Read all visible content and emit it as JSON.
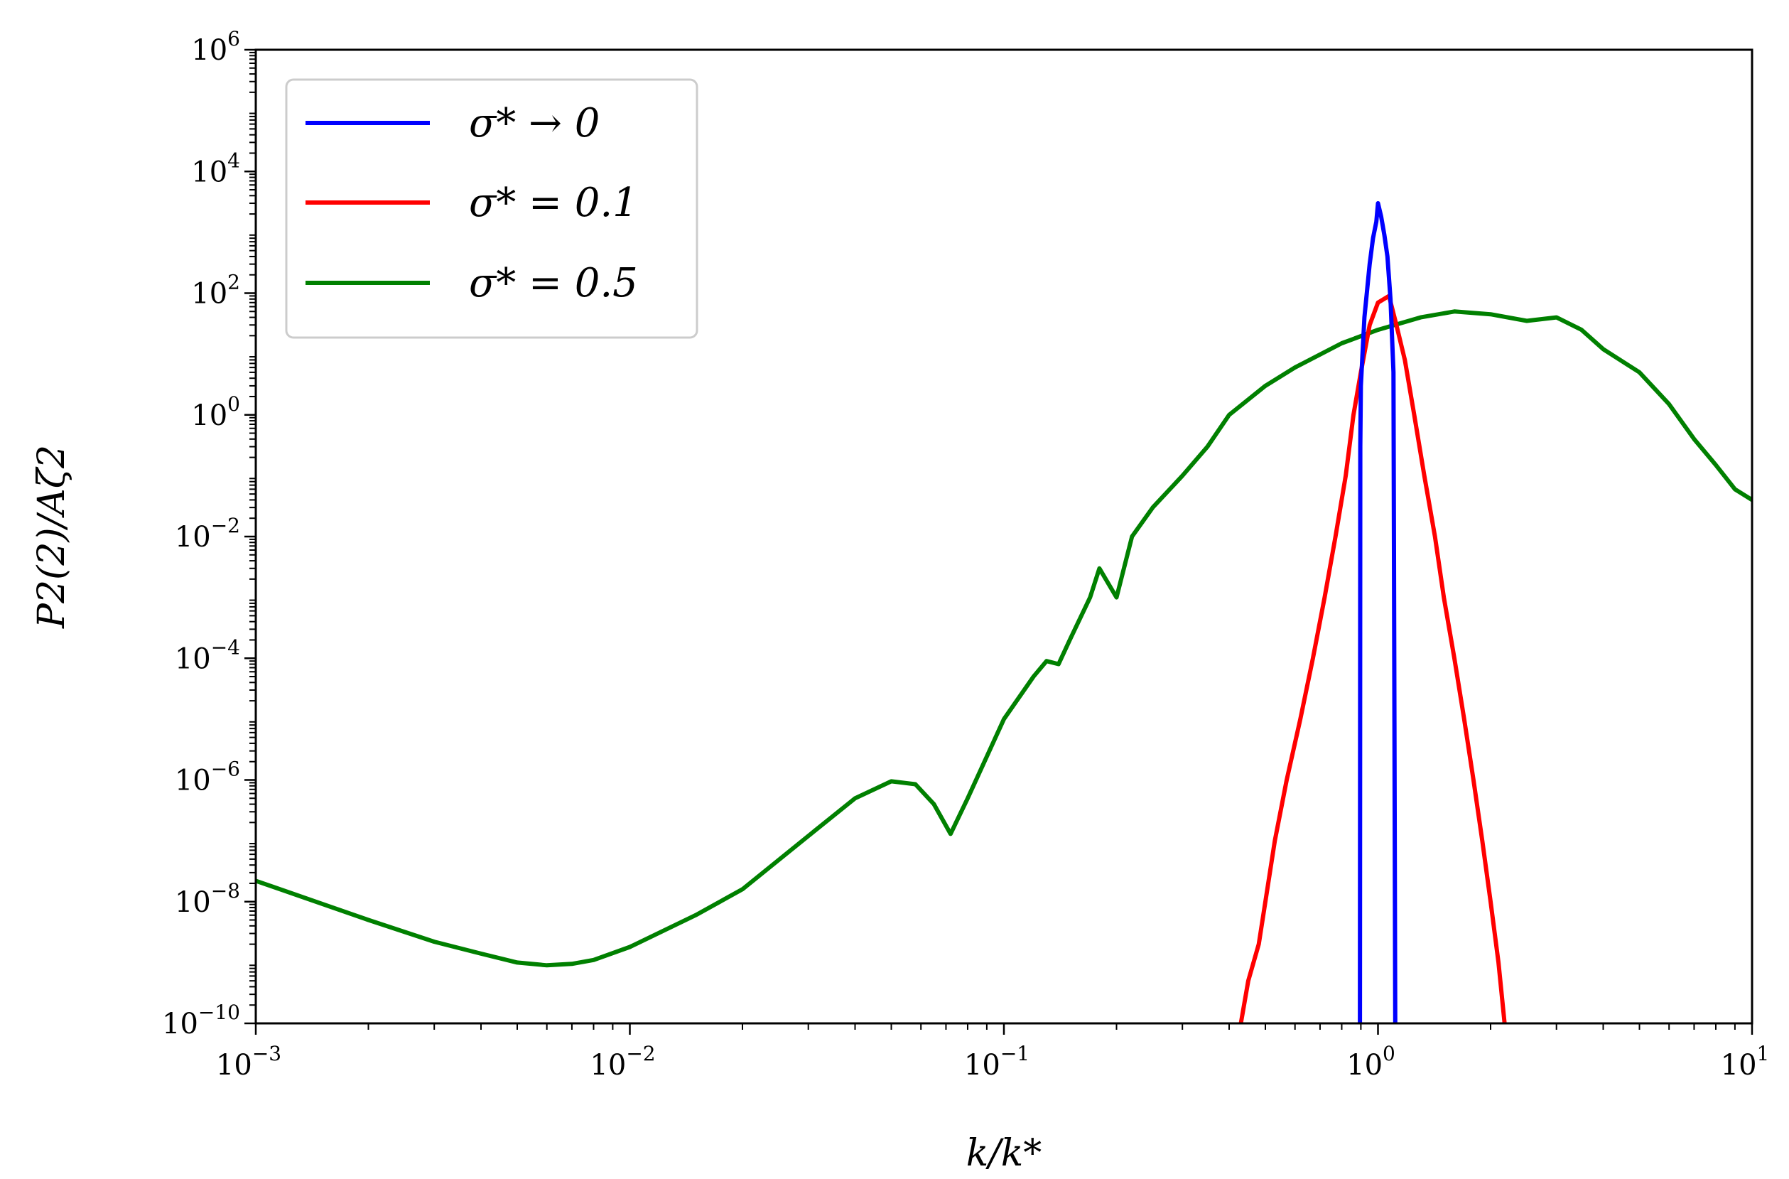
{
  "chart_data": {
    "type": "line",
    "xlabel": "k/k*",
    "ylabel": "P2(2)/Aζ2",
    "xscale": "log",
    "yscale": "log",
    "xlim": [
      0.001,
      10
    ],
    "ylim": [
      1e-10,
      1000000.0
    ],
    "grid": false,
    "legend_position": "top-left",
    "x_ticks": [
      {
        "value": 0.001,
        "base": "10",
        "exp": "−3"
      },
      {
        "value": 0.01,
        "base": "10",
        "exp": "−2"
      },
      {
        "value": 0.1,
        "base": "10",
        "exp": "−1"
      },
      {
        "value": 1,
        "base": "10",
        "exp": "0"
      },
      {
        "value": 10,
        "base": "10",
        "exp": "1"
      }
    ],
    "y_ticks": [
      {
        "value": 1e-10,
        "base": "10",
        "exp": "−10"
      },
      {
        "value": 1e-08,
        "base": "10",
        "exp": "−8"
      },
      {
        "value": 1e-06,
        "base": "10",
        "exp": "−6"
      },
      {
        "value": 0.0001,
        "base": "10",
        "exp": "−4"
      },
      {
        "value": 0.01,
        "base": "10",
        "exp": "−2"
      },
      {
        "value": 1,
        "base": "10",
        "exp": "0"
      },
      {
        "value": 100.0,
        "base": "10",
        "exp": "2"
      },
      {
        "value": 10000.0,
        "base": "10",
        "exp": "4"
      },
      {
        "value": 1000000.0,
        "base": "10",
        "exp": "6"
      }
    ],
    "series": [
      {
        "name": "σ* → 0",
        "color": "#0000ff",
        "points": [
          [
            0.895,
            1e-10
          ],
          [
            0.897,
            0.3
          ],
          [
            0.9,
            3
          ],
          [
            0.92,
            40
          ],
          [
            0.95,
            300
          ],
          [
            0.97,
            800
          ],
          [
            0.99,
            1500
          ],
          [
            1.0,
            3000
          ],
          [
            1.02,
            1800
          ],
          [
            1.04,
            900
          ],
          [
            1.06,
            400
          ],
          [
            1.08,
            80
          ],
          [
            1.1,
            5
          ],
          [
            1.112,
            1e-10
          ]
        ]
      },
      {
        "name": "σ* = 0.1",
        "color": "#ff0000",
        "points": [
          [
            0.43,
            1e-10
          ],
          [
            0.45,
            5e-10
          ],
          [
            0.48,
            2e-09
          ],
          [
            0.5,
            1e-08
          ],
          [
            0.53,
            1e-07
          ],
          [
            0.57,
            1e-06
          ],
          [
            0.62,
            1e-05
          ],
          [
            0.67,
            0.0001
          ],
          [
            0.72,
            0.001
          ],
          [
            0.77,
            0.01
          ],
          [
            0.82,
            0.1
          ],
          [
            0.86,
            1
          ],
          [
            0.9,
            5
          ],
          [
            0.95,
            30
          ],
          [
            1.0,
            70
          ],
          [
            1.07,
            90
          ],
          [
            1.12,
            30
          ],
          [
            1.18,
            8
          ],
          [
            1.25,
            1
          ],
          [
            1.33,
            0.1
          ],
          [
            1.42,
            0.01
          ],
          [
            1.5,
            0.001
          ],
          [
            1.6,
            0.0001
          ],
          [
            1.7,
            1e-05
          ],
          [
            1.8,
            1e-06
          ],
          [
            1.9,
            1e-07
          ],
          [
            2.0,
            1e-08
          ],
          [
            2.1,
            1e-09
          ],
          [
            2.18,
            1e-10
          ]
        ]
      },
      {
        "name": "σ* = 0.5",
        "color": "#008000",
        "points": [
          [
            0.001,
            2.2e-08
          ],
          [
            0.002,
            5e-09
          ],
          [
            0.003,
            2.2e-09
          ],
          [
            0.004,
            1.4e-09
          ],
          [
            0.005,
            1e-09
          ],
          [
            0.006,
            9e-10
          ],
          [
            0.007,
            9.5e-10
          ],
          [
            0.008,
            1.1e-09
          ],
          [
            0.01,
            1.8e-09
          ],
          [
            0.015,
            6e-09
          ],
          [
            0.02,
            1.6e-08
          ],
          [
            0.03,
            1.2e-07
          ],
          [
            0.04,
            5e-07
          ],
          [
            0.05,
            9.5e-07
          ],
          [
            0.058,
            8.5e-07
          ],
          [
            0.065,
            4e-07
          ],
          [
            0.072,
            1.3e-07
          ],
          [
            0.08,
            5e-07
          ],
          [
            0.1,
            1e-05
          ],
          [
            0.12,
            5e-05
          ],
          [
            0.13,
            9e-05
          ],
          [
            0.14,
            8e-05
          ],
          [
            0.15,
            0.0002
          ],
          [
            0.17,
            0.001
          ],
          [
            0.18,
            0.003
          ],
          [
            0.2,
            0.001
          ],
          [
            0.22,
            0.01
          ],
          [
            0.25,
            0.03
          ],
          [
            0.3,
            0.1
          ],
          [
            0.35,
            0.3
          ],
          [
            0.4,
            1
          ],
          [
            0.5,
            3
          ],
          [
            0.6,
            6
          ],
          [
            0.8,
            15
          ],
          [
            1.0,
            25
          ],
          [
            1.3,
            40
          ],
          [
            1.6,
            50
          ],
          [
            2.0,
            45
          ],
          [
            2.5,
            35
          ],
          [
            3.0,
            40
          ],
          [
            3.5,
            25
          ],
          [
            4.0,
            12
          ],
          [
            5.0,
            5
          ],
          [
            6.0,
            1.5
          ],
          [
            7.0,
            0.4
          ],
          [
            8.0,
            0.15
          ],
          [
            9.0,
            0.06
          ],
          [
            10.0,
            0.04
          ]
        ]
      }
    ]
  }
}
